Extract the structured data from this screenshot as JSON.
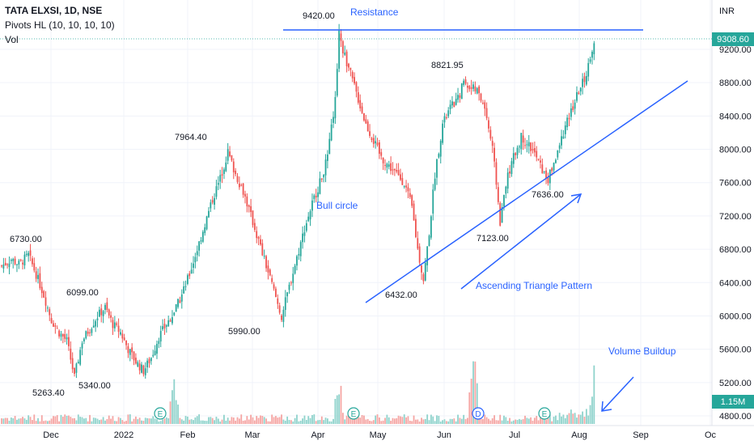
{
  "header": {
    "symbol": "TATA ELXSI, 1D, NSE",
    "indicator": "Pivots HL (10, 10, 10, 10)",
    "volume_label": "Vol"
  },
  "currency_label": "INR",
  "colors": {
    "up": "#26a69a",
    "down": "#ef5350",
    "vol_up": "#8fd3cc",
    "vol_down": "#f5a5a3",
    "line": "#2962ff",
    "price_tag": "#26a69a"
  },
  "last_price_tag": "9308.60",
  "volume_tag": "1.15M",
  "annotations": {
    "resistance": "Resistance",
    "bull_circle": "Bull circle",
    "ascending_triangle": "Ascending Triangle Pattern",
    "volume_buildup": "Volume Buildup"
  },
  "pivot_labels": [
    "6730.00",
    "5263.40",
    "6099.00",
    "5340.00",
    "7964.40",
    "5990.00",
    "9420.00",
    "6432.00",
    "8821.95",
    "7123.00",
    "7636.00"
  ],
  "event_markers": [
    "E",
    "E",
    "D",
    "E"
  ],
  "chart_data": {
    "type": "candlestick",
    "title": "TATA ELXSI, 1D, NSE",
    "ylabel": "INR",
    "ylim": [
      4700,
      9700
    ],
    "y_ticks": [
      4800,
      5200,
      5600,
      6000,
      6400,
      6800,
      7200,
      7600,
      8000,
      8400,
      8800,
      9200
    ],
    "x_ticks": [
      "Dec",
      "2022",
      "Feb",
      "Mar",
      "Apr",
      "May",
      "Jun",
      "Jul",
      "Aug",
      "Sep",
      "Oc"
    ],
    "last_price": 9308.6,
    "resistance_level": 9420.0,
    "pivot_points": [
      {
        "label": "6730.00",
        "value": 6730.0,
        "type": "high"
      },
      {
        "label": "5263.40",
        "value": 5263.4,
        "type": "low"
      },
      {
        "label": "6099.00",
        "value": 6099.0,
        "type": "high"
      },
      {
        "label": "5340.00",
        "value": 5340.0,
        "type": "low"
      },
      {
        "label": "7964.40",
        "value": 7964.4,
        "type": "high"
      },
      {
        "label": "5990.00",
        "value": 5990.0,
        "type": "low"
      },
      {
        "label": "9420.00",
        "value": 9420.0,
        "type": "high"
      },
      {
        "label": "6432.00",
        "value": 6432.0,
        "type": "low"
      },
      {
        "label": "8821.95",
        "value": 8821.95,
        "type": "high"
      },
      {
        "label": "7123.00",
        "value": 7123.0,
        "type": "low"
      },
      {
        "label": "7636.00",
        "value": 7636.0,
        "type": "low"
      }
    ],
    "price_path": [
      [
        0,
        6600
      ],
      [
        5,
        6680
      ],
      [
        9,
        6620
      ],
      [
        14,
        6730
      ],
      [
        18,
        6500
      ],
      [
        22,
        6250
      ],
      [
        26,
        5950
      ],
      [
        30,
        5800
      ],
      [
        34,
        5700
      ],
      [
        38,
        5263.4
      ],
      [
        42,
        5700
      ],
      [
        46,
        5850
      ],
      [
        50,
        6000
      ],
      [
        54,
        6099
      ],
      [
        58,
        5900
      ],
      [
        62,
        5800
      ],
      [
        66,
        5600
      ],
      [
        70,
        5450
      ],
      [
        74,
        5340
      ],
      [
        78,
        5500
      ],
      [
        82,
        5750
      ],
      [
        86,
        5900
      ],
      [
        90,
        6050
      ],
      [
        94,
        6250
      ],
      [
        98,
        6500
      ],
      [
        102,
        6800
      ],
      [
        106,
        7100
      ],
      [
        110,
        7400
      ],
      [
        114,
        7650
      ],
      [
        118,
        7964.4
      ],
      [
        122,
        7700
      ],
      [
        126,
        7500
      ],
      [
        130,
        7200
      ],
      [
        134,
        6900
      ],
      [
        138,
        6600
      ],
      [
        142,
        6300
      ],
      [
        146,
        5990
      ],
      [
        150,
        6350
      ],
      [
        154,
        6700
      ],
      [
        158,
        7050
      ],
      [
        162,
        7350
      ],
      [
        166,
        7600
      ],
      [
        170,
        7900
      ],
      [
        174,
        8600
      ],
      [
        176,
        9420
      ],
      [
        178,
        9200
      ],
      [
        182,
        8900
      ],
      [
        186,
        8600
      ],
      [
        190,
        8300
      ],
      [
        194,
        8100
      ],
      [
        198,
        7900
      ],
      [
        202,
        7800
      ],
      [
        206,
        7700
      ],
      [
        210,
        7600
      ],
      [
        214,
        7300
      ],
      [
        217,
        6800
      ],
      [
        220,
        6432
      ],
      [
        223,
        7000
      ],
      [
        226,
        7700
      ],
      [
        230,
        8300
      ],
      [
        234,
        8500
      ],
      [
        238,
        8600
      ],
      [
        241,
        8821.95
      ],
      [
        244,
        8750
      ],
      [
        248,
        8700
      ],
      [
        252,
        8500
      ],
      [
        256,
        8000
      ],
      [
        258,
        7600
      ],
      [
        260,
        7123
      ],
      [
        263,
        7600
      ],
      [
        267,
        7900
      ],
      [
        271,
        8150
      ],
      [
        275,
        8050
      ],
      [
        279,
        7900
      ],
      [
        283,
        7700
      ],
      [
        285,
        7636
      ],
      [
        289,
        7900
      ],
      [
        293,
        8200
      ],
      [
        297,
        8450
      ],
      [
        301,
        8700
      ],
      [
        305,
        8900
      ],
      [
        307,
        9100
      ],
      [
        309,
        9308.6
      ]
    ],
    "volume_spikes": [
      {
        "x": 90,
        "volume": "high"
      },
      {
        "x": 176,
        "volume": "high"
      },
      {
        "x": 246,
        "volume": "very-high"
      },
      {
        "x": 309,
        "volume": "high"
      }
    ]
  }
}
